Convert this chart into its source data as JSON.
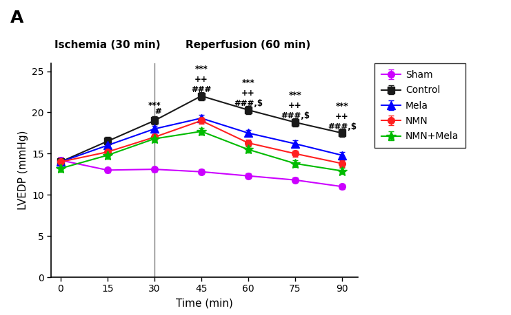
{
  "time": [
    0,
    15,
    30,
    45,
    60,
    75,
    90
  ],
  "sham": [
    14.2,
    13.0,
    13.1,
    12.8,
    12.3,
    11.8,
    11.0
  ],
  "control": [
    14.0,
    16.5,
    19.0,
    22.0,
    20.3,
    18.8,
    17.5
  ],
  "mela": [
    14.0,
    16.0,
    18.0,
    19.3,
    17.5,
    16.2,
    14.8
  ],
  "nmn": [
    14.0,
    15.2,
    17.0,
    19.0,
    16.3,
    15.0,
    13.8
  ],
  "nmn_mela": [
    13.2,
    14.8,
    16.8,
    17.7,
    15.5,
    13.8,
    12.9
  ],
  "sham_err": [
    0.3,
    0.3,
    0.3,
    0.3,
    0.3,
    0.3,
    0.3
  ],
  "control_err": [
    0.5,
    0.5,
    0.5,
    0.5,
    0.5,
    0.5,
    0.5
  ],
  "mela_err": [
    0.4,
    0.4,
    0.4,
    0.4,
    0.4,
    0.4,
    0.4
  ],
  "nmn_err": [
    0.4,
    0.4,
    0.4,
    0.4,
    0.4,
    0.4,
    0.4
  ],
  "nmn_mela_err": [
    0.4,
    0.4,
    0.4,
    0.4,
    0.4,
    0.4,
    0.4
  ],
  "sham_color": "#CC00FF",
  "control_color": "#1a1a1a",
  "mela_color": "#0000FF",
  "nmn_color": "#FF2020",
  "nmn_mela_color": "#00BB00",
  "ylabel": "LVEDP (mmHg)",
  "xlabel": "Time (min)",
  "title_ischemia": "Ischemia (30 min)",
  "title_reperfusion": "Reperfusion (60 min)",
  "panel_label": "A",
  "ylim": [
    0,
    26
  ],
  "yticks": [
    0,
    5,
    10,
    15,
    20,
    25
  ],
  "xticks": [
    0,
    15,
    30,
    45,
    60,
    75,
    90
  ],
  "vline_x": 30
}
